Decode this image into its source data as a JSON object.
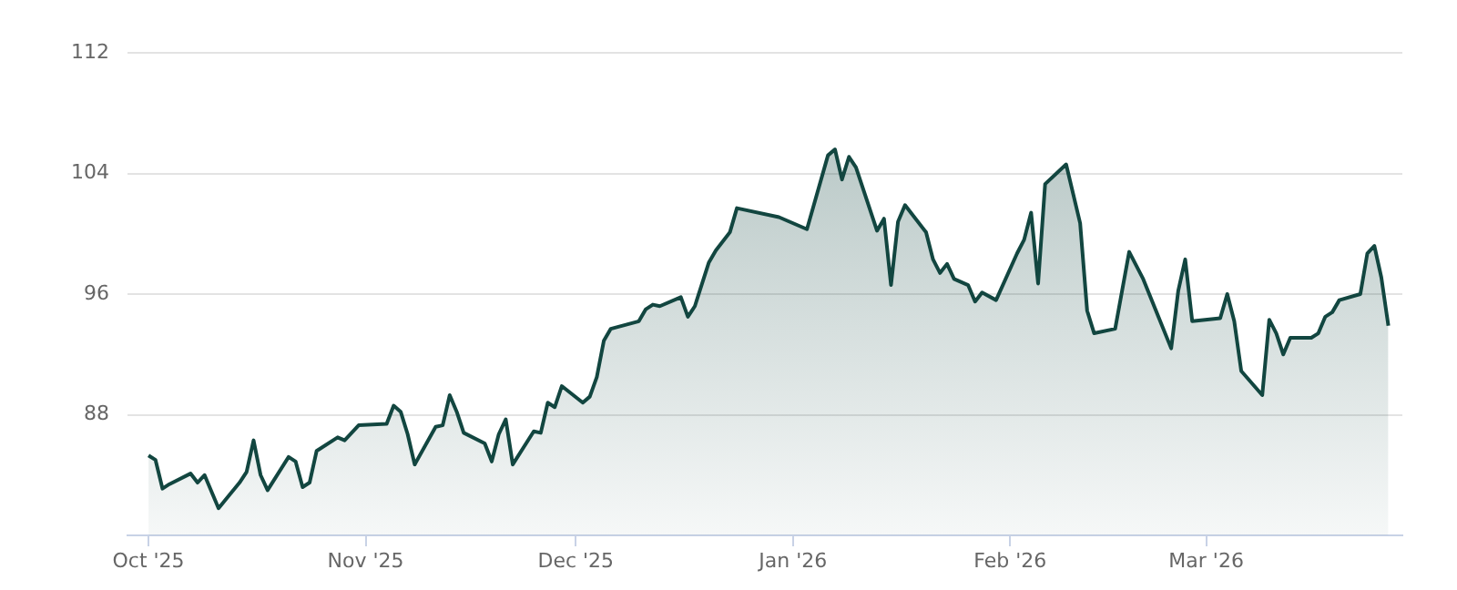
{
  "chart_data": {
    "type": "area",
    "x": [
      "2025-10-01",
      "2025-10-02",
      "2025-10-03",
      "2025-10-04",
      "2025-10-07",
      "2025-10-08",
      "2025-10-09",
      "2025-10-11",
      "2025-10-14",
      "2025-10-15",
      "2025-10-16",
      "2025-10-17",
      "2025-10-18",
      "2025-10-21",
      "2025-10-22",
      "2025-10-23",
      "2025-10-24",
      "2025-10-25",
      "2025-10-28",
      "2025-10-29",
      "2025-10-31",
      "2025-11-04",
      "2025-11-05",
      "2025-11-06",
      "2025-11-07",
      "2025-11-08",
      "2025-11-11",
      "2025-11-12",
      "2025-11-13",
      "2025-11-14",
      "2025-11-15",
      "2025-11-18",
      "2025-11-19",
      "2025-11-20",
      "2025-11-21",
      "2025-11-22",
      "2025-11-25",
      "2025-11-26",
      "2025-11-27",
      "2025-11-28",
      "2025-11-29",
      "2025-12-02",
      "2025-12-03",
      "2025-12-04",
      "2025-12-05",
      "2025-12-06",
      "2025-12-10",
      "2025-12-11",
      "2025-12-12",
      "2025-12-13",
      "2025-12-16",
      "2025-12-17",
      "2025-12-18",
      "2025-12-20",
      "2025-12-21",
      "2025-12-23",
      "2025-12-24",
      "2025-12-30",
      "2026-01-03",
      "2026-01-06",
      "2026-01-07",
      "2026-01-08",
      "2026-01-09",
      "2026-01-10",
      "2026-01-13",
      "2026-01-14",
      "2026-01-15",
      "2026-01-16",
      "2026-01-17",
      "2026-01-20",
      "2026-01-21",
      "2026-01-22",
      "2026-01-23",
      "2026-01-24",
      "2026-01-26",
      "2026-01-27",
      "2026-01-28",
      "2026-01-30",
      "2026-02-02",
      "2026-02-03",
      "2026-02-04",
      "2026-02-05",
      "2026-02-06",
      "2026-02-09",
      "2026-02-11",
      "2026-02-12",
      "2026-02-13",
      "2026-02-16",
      "2026-02-18",
      "2026-02-20",
      "2026-02-24",
      "2026-02-25",
      "2026-02-26",
      "2026-02-27",
      "2026-03-03",
      "2026-03-04",
      "2026-03-05",
      "2026-03-06",
      "2026-03-09",
      "2026-03-10",
      "2026-03-11",
      "2026-03-12",
      "2026-03-13",
      "2026-03-16",
      "2026-03-17",
      "2026-03-18",
      "2026-03-19",
      "2026-03-20",
      "2026-03-23",
      "2026-03-24",
      "2026-03-25",
      "2026-03-26",
      "2026-03-27"
    ],
    "series": [
      {
        "color": "#124640",
        "values": [
          85.3,
          85.0,
          83.1,
          83.4,
          84.1,
          83.5,
          84.0,
          81.8,
          83.5,
          84.2,
          86.3,
          84.0,
          83.0,
          85.2,
          84.9,
          83.2,
          83.5,
          85.6,
          86.5,
          86.3,
          87.3,
          87.4,
          88.6,
          88.2,
          86.7,
          84.7,
          87.2,
          87.3,
          89.3,
          88.2,
          86.8,
          86.1,
          84.9,
          86.7,
          87.7,
          84.7,
          86.9,
          86.8,
          88.8,
          88.5,
          89.9,
          88.8,
          89.2,
          90.5,
          92.9,
          93.7,
          94.2,
          95.0,
          95.3,
          95.2,
          95.8,
          94.5,
          95.2,
          98.1,
          98.9,
          100.1,
          101.7,
          101.1,
          100.3,
          105.2,
          105.6,
          103.6,
          105.1,
          104.4,
          100.2,
          101.0,
          96.6,
          100.8,
          101.9,
          100.1,
          98.3,
          97.4,
          98.0,
          97.0,
          96.6,
          95.5,
          96.1,
          95.6,
          98.7,
          99.6,
          101.4,
          96.7,
          103.3,
          104.6,
          100.7,
          94.9,
          93.4,
          93.7,
          98.8,
          97.0,
          92.4,
          96.2,
          98.3,
          94.2,
          94.4,
          96.0,
          94.2,
          90.9,
          89.3,
          94.3,
          93.4,
          92.0,
          93.1,
          93.1,
          93.4,
          94.5,
          94.8,
          95.6,
          96.0,
          98.7,
          99.2,
          97.1,
          93.9
        ]
      }
    ],
    "xlim": [
      "2025-09-28",
      "2026-03-29"
    ],
    "xticks": [
      {
        "value": "2025-10-01",
        "label": "Oct '25"
      },
      {
        "value": "2025-11-01",
        "label": "Nov '25"
      },
      {
        "value": "2025-12-01",
        "label": "Dec '25"
      },
      {
        "value": "2026-01-01",
        "label": "Jan '26"
      },
      {
        "value": "2026-02-01",
        "label": "Feb '26"
      },
      {
        "value": "2026-03-01",
        "label": "Mar '26"
      }
    ],
    "ylim": [
      80,
      112
    ],
    "yticks": [
      88,
      96,
      104,
      112
    ],
    "grid": "y",
    "legend": false,
    "marker": "none",
    "line_style": "solid"
  }
}
